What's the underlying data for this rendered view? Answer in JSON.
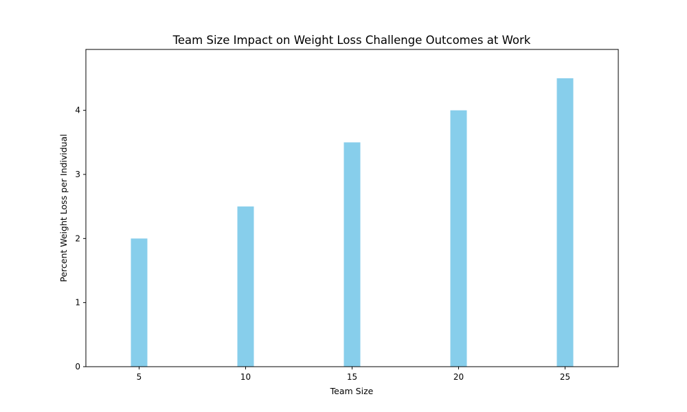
{
  "chart_data": {
    "type": "bar",
    "title": "Team Size Impact on Weight Loss Challenge Outcomes at Work",
    "xlabel": "Team Size",
    "ylabel": "Percent Weight Loss per Individual",
    "x": [
      5,
      10,
      15,
      20,
      25
    ],
    "values": [
      2.0,
      2.5,
      3.5,
      4.0,
      4.5
    ],
    "x_ticks": [
      "5",
      "10",
      "15",
      "20",
      "25"
    ],
    "y_ticks": [
      "0",
      "1",
      "2",
      "3",
      "4"
    ],
    "xlim": [
      2.5,
      27.5
    ],
    "ylim": [
      0,
      4.95
    ],
    "bar_color": "#87CEEB",
    "grid": false,
    "legend": "none"
  }
}
